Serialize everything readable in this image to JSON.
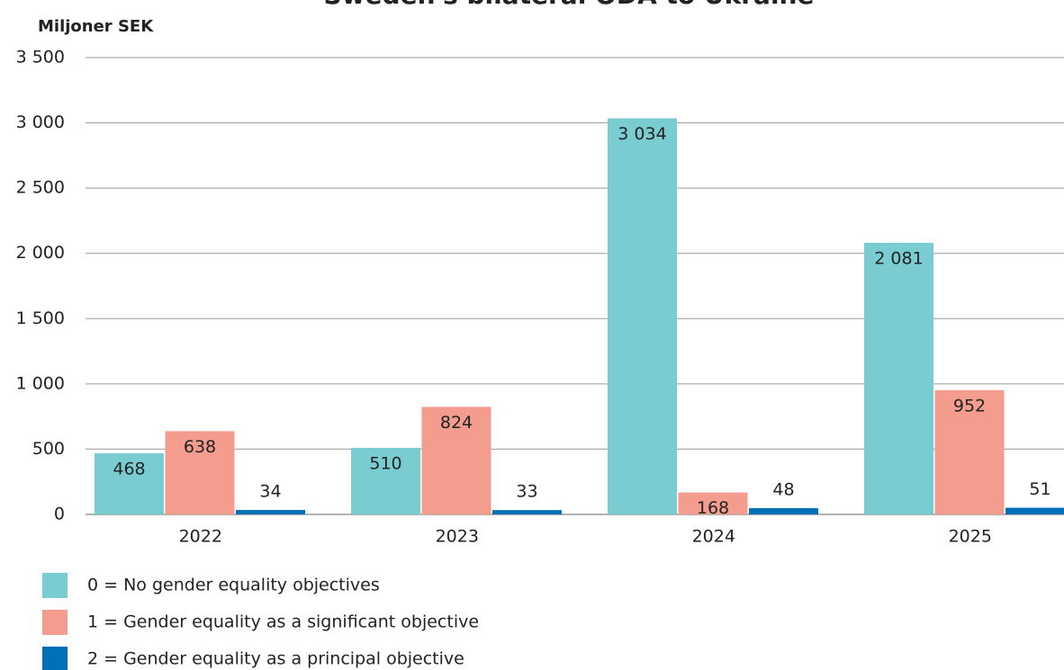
{
  "chart_data": {
    "type": "bar",
    "title": "Sweden's bilateral ODA to Ukraine",
    "y_label": "Miljoner SEK",
    "categories": [
      "2022",
      "2023",
      "2024",
      "2025"
    ],
    "series": [
      {
        "name": "0 = No gender equality objectives",
        "color": "#79cdd0",
        "values": [
          468,
          510,
          3034,
          2081
        ],
        "value_labels": [
          "468",
          "510",
          "3 034",
          "2 081"
        ]
      },
      {
        "name": "1 = Gender equality as a significant objective",
        "color": "#f49d8f",
        "values": [
          638,
          824,
          168,
          952
        ]
      },
      {
        "name": "2 = Gender equality as a principal objective",
        "color": "#0070b8",
        "values": [
          34,
          33,
          48,
          51
        ]
      }
    ],
    "ylim": [
      0,
      3500
    ],
    "yticks": [
      0,
      500,
      {
        "value": 1000,
        "label": "1 000"
      },
      {
        "value": 1500,
        "label": "1 500"
      },
      {
        "value": 2000,
        "label": "2 000"
      },
      {
        "value": 2500,
        "label": "2 500"
      },
      {
        "value": 3000,
        "label": "3 000"
      },
      {
        "value": 3500,
        "label": "3 500"
      }
    ],
    "grid": true,
    "legend": "bottom"
  }
}
